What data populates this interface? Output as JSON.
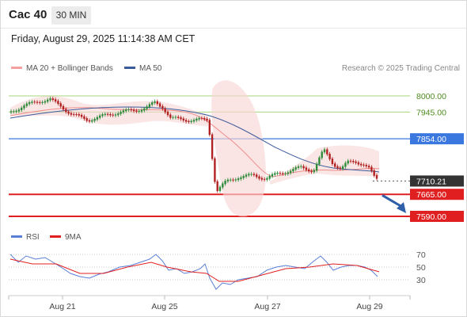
{
  "toolbar": {
    "symbol": "Cac 40",
    "timeframe": "30 MIN"
  },
  "header": {
    "timestamp": "Friday, August 29, 2025 11:14:38 AM CET"
  },
  "legend": {
    "bollinger": {
      "label": "MA 20 + Bollinger Bands",
      "color": "#f4a0a0"
    },
    "ma50": {
      "label": "MA 50",
      "color": "#3b5b9a"
    },
    "credit": "Research © 2025 Trading Central"
  },
  "rsi_legend": {
    "rsi": {
      "label": "RSI",
      "color": "#5b7fd6"
    },
    "ma9": {
      "label": "9MA",
      "color": "#e02020"
    }
  },
  "colors": {
    "up": "#2e8b3a",
    "down": "#b22222",
    "resistance": "#a6d47a",
    "pivot": "#3a78e0",
    "support": "#e02020",
    "arrow": "#2f5fa8"
  },
  "chart_data": {
    "type": "candlestick",
    "price_levels": [
      {
        "value": 8000.0,
        "label": "8000.00",
        "kind": "resistance"
      },
      {
        "value": 7945.0,
        "label": "7945.00",
        "kind": "resistance"
      },
      {
        "value": 7854.0,
        "label": "7854.00",
        "kind": "pivot"
      },
      {
        "value": 7710.21,
        "label": "7710.21",
        "kind": "last"
      },
      {
        "value": 7665.0,
        "label": "7665.00",
        "kind": "support"
      },
      {
        "value": 7590.0,
        "label": "7590.00",
        "kind": "support"
      }
    ],
    "x_ticks": [
      "Aug 21",
      "Aug 25",
      "Aug 27",
      "Aug 29"
    ],
    "rsi_levels": [
      "70",
      "50",
      "30"
    ],
    "forecast": {
      "from": 7710.21,
      "to": 7590.0,
      "direction": "down"
    }
  }
}
